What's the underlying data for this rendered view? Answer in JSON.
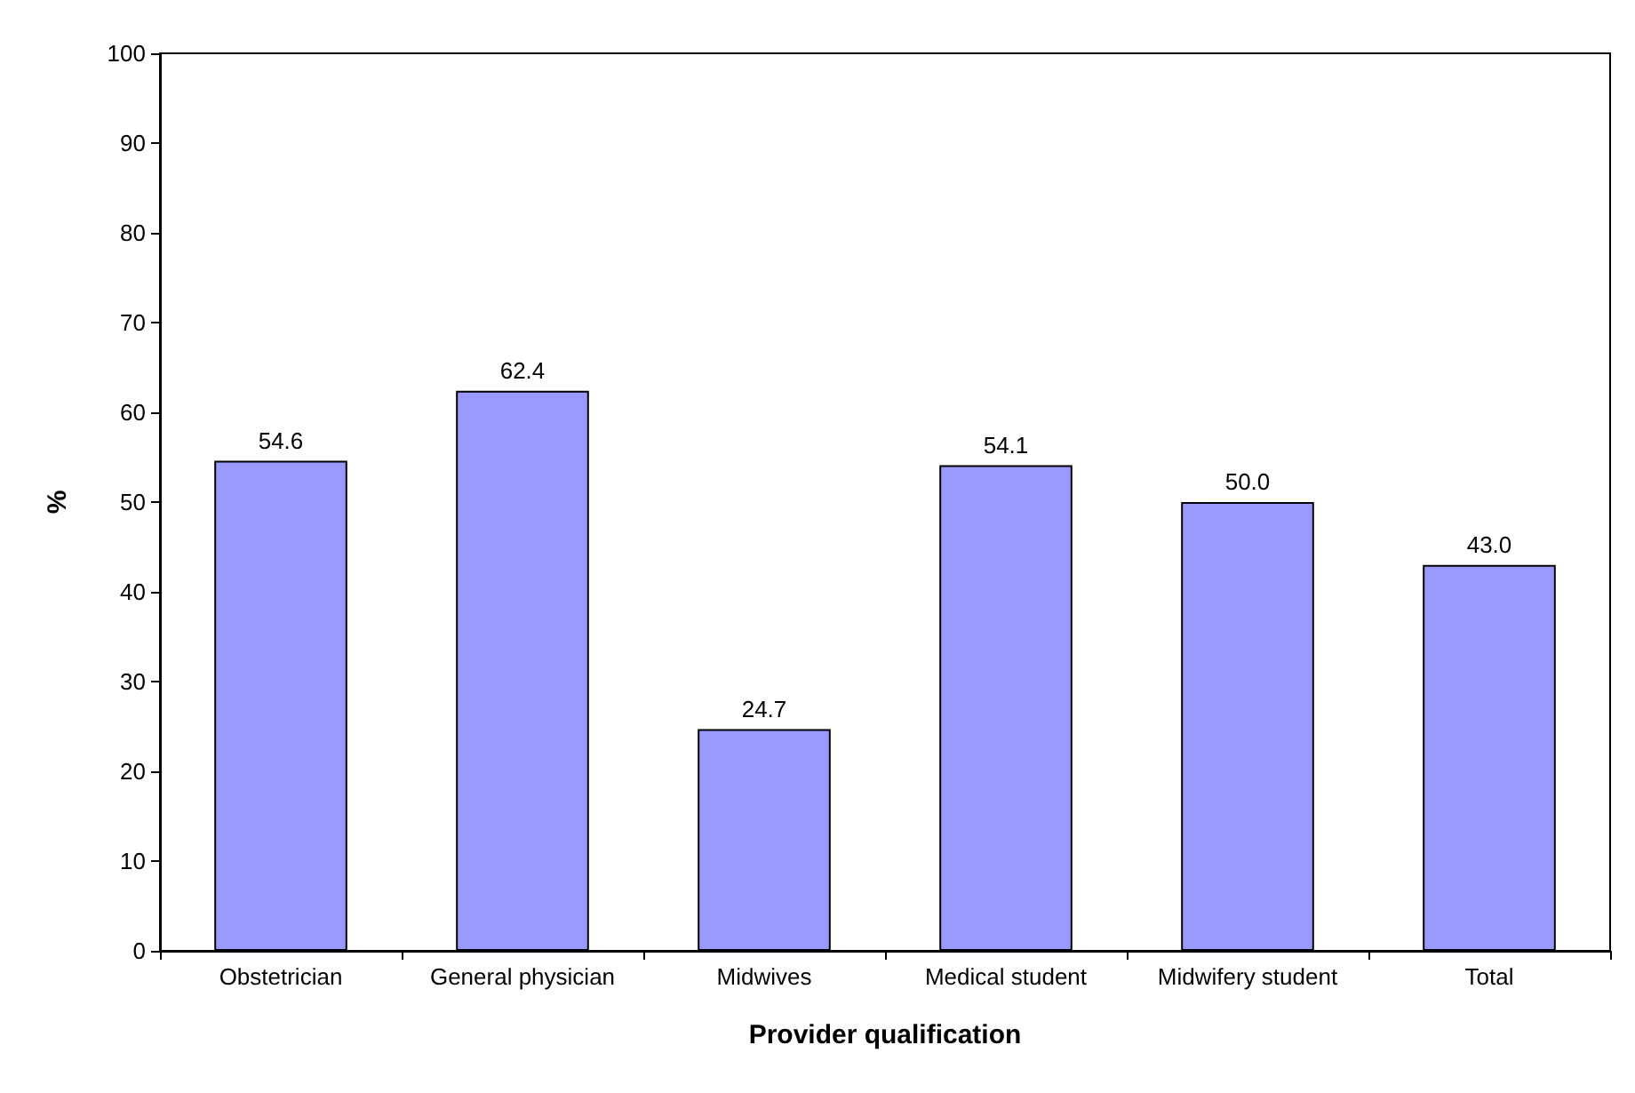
{
  "chart_data": {
    "type": "bar",
    "xlabel": "Provider qualification",
    "ylabel": "%",
    "categories": [
      "Obstetrician",
      "General physician",
      "Midwives",
      "Medical student",
      "Midwifery student",
      "Total"
    ],
    "values": [
      54.6,
      62.4,
      24.7,
      54.1,
      50.0,
      43.0
    ],
    "value_labels": [
      "54.6",
      "62.4",
      "24.7",
      "54.1",
      "50.0",
      "43.0"
    ],
    "color": "#9999ff",
    "ylim": [
      0,
      100
    ],
    "yticks": [
      0,
      10,
      20,
      30,
      40,
      50,
      60,
      70,
      80,
      90,
      100
    ],
    "grid": false
  }
}
